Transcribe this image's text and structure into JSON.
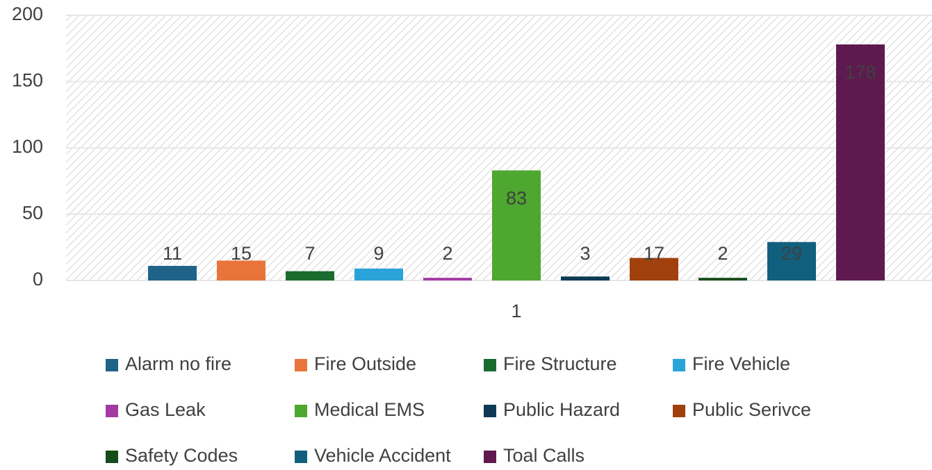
{
  "chart_data": {
    "type": "bar",
    "categories": [
      "1"
    ],
    "series": [
      {
        "name": "Alarm no fire",
        "color": "#1f6389",
        "values": [
          11
        ]
      },
      {
        "name": "Fire Outside",
        "color": "#e8743b",
        "values": [
          15
        ]
      },
      {
        "name": "Fire Structure",
        "color": "#1a6b2e",
        "values": [
          7
        ]
      },
      {
        "name": "Fire Vehicle",
        "color": "#2aa3d9",
        "values": [
          9
        ]
      },
      {
        "name": "Gas Leak",
        "color": "#a33aa3",
        "values": [
          2
        ]
      },
      {
        "name": "Medical EMS",
        "color": "#4ea72e",
        "values": [
          83
        ]
      },
      {
        "name": "Public Hazard",
        "color": "#0e3a55",
        "values": [
          3
        ]
      },
      {
        "name": "Public Serivce",
        "color": "#a0410d",
        "values": [
          17
        ]
      },
      {
        "name": "Safety Codes",
        "color": "#174b1a",
        "values": [
          2
        ]
      },
      {
        "name": "Vehicle Accident",
        "color": "#10607d",
        "values": [
          29
        ]
      },
      {
        "name": "Toal Calls",
        "color": "#5e1a4f",
        "values": [
          178
        ]
      }
    ],
    "ylim": [
      0,
      200
    ],
    "yticks": [
      0,
      50,
      100,
      150,
      200
    ],
    "grid": true,
    "legend": "bottom"
  }
}
